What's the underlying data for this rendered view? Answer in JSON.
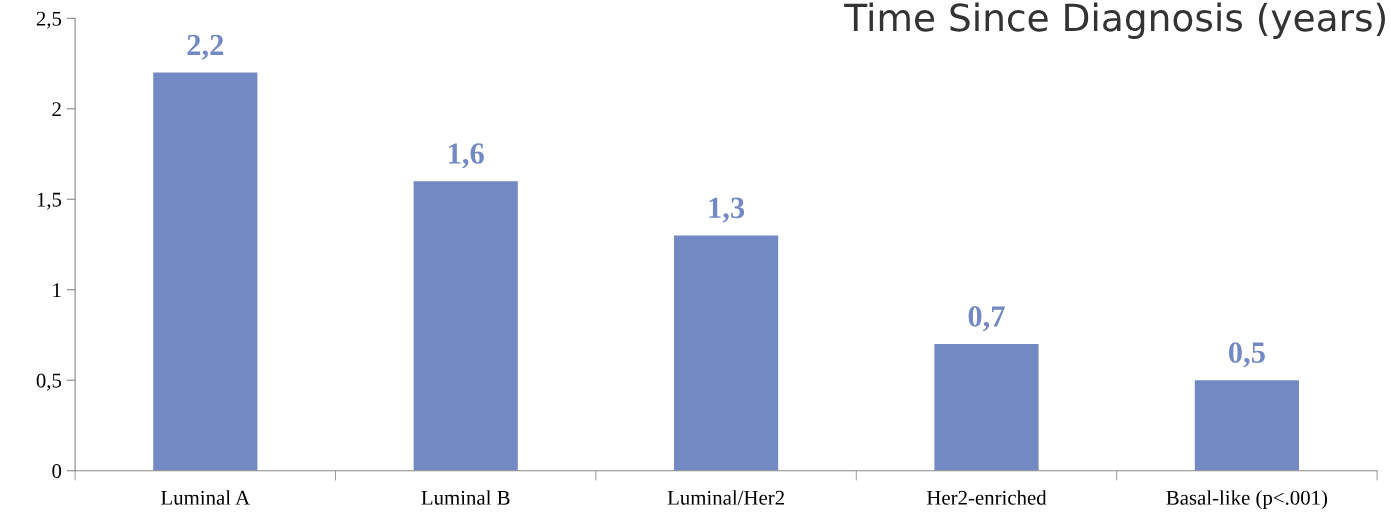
{
  "chart_data": {
    "type": "bar",
    "title": "Time Since Diagnosis (years)",
    "categories": [
      "Luminal A",
      "Luminal B",
      "Luminal/Her2",
      "Her2-enriched",
      "Basal-like (p<.001)"
    ],
    "values": [
      2.2,
      1.6,
      1.3,
      0.7,
      0.5
    ],
    "value_labels": [
      "2,2",
      "1,6",
      "1,3",
      "0,7",
      "0,5"
    ],
    "color": "#7289c3",
    "ylim": [
      0,
      2.5
    ],
    "yticks": [
      {
        "value": 0,
        "label": "0"
      },
      {
        "value": 0.5,
        "label": "0,5"
      },
      {
        "value": 1,
        "label": "1"
      },
      {
        "value": 1.5,
        "label": "1,5"
      },
      {
        "value": 2,
        "label": "2"
      },
      {
        "value": 2.5,
        "label": "2,5"
      }
    ],
    "grid": false,
    "legend": false
  }
}
